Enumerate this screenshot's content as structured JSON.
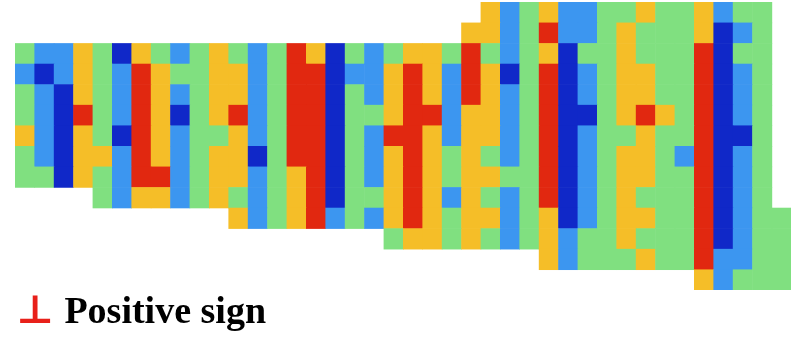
{
  "chart_data": {
    "type": "heatmap",
    "tick_labels": false,
    "grid": false,
    "zlim": [
      -1,
      1
    ],
    "cells": [
      [
        null,
        null,
        null,
        null,
        null,
        null,
        null,
        null,
        null,
        null,
        null,
        null,
        null,
        null,
        null,
        null,
        null,
        null,
        null,
        null,
        null,
        null,
        null,
        null,
        0.5,
        -0.5,
        0,
        0.5,
        -0.5,
        -0.5,
        0,
        0,
        0.5,
        0,
        0,
        0.5,
        -0.5,
        0,
        0,
        null
      ],
      [
        null,
        null,
        null,
        null,
        null,
        null,
        null,
        null,
        null,
        null,
        null,
        null,
        null,
        null,
        null,
        null,
        null,
        null,
        null,
        null,
        null,
        null,
        null,
        0.5,
        0.5,
        -0.5,
        0,
        1,
        -0.5,
        -0.5,
        0,
        0.5,
        0,
        0,
        0,
        0.5,
        -1,
        -0.5,
        0,
        null
      ],
      [
        0,
        -0.5,
        -0.5,
        0.5,
        0,
        -1,
        0.5,
        0,
        -0.5,
        0,
        0.5,
        0,
        -0.5,
        0,
        1,
        0.5,
        -1,
        0,
        -0.5,
        0,
        0.5,
        0.5,
        0,
        1,
        0,
        -0.5,
        0,
        0.5,
        -1,
        0,
        0,
        0.5,
        0,
        0,
        0,
        1,
        -1,
        0,
        0,
        null
      ],
      [
        -0.5,
        -1,
        -0.5,
        0.5,
        0,
        -0.5,
        1,
        0.5,
        0,
        0,
        0.5,
        0.5,
        -0.5,
        0,
        1,
        1,
        -1,
        -0.5,
        -0.5,
        0.5,
        1,
        0.5,
        -0.5,
        1,
        0.5,
        -1,
        0,
        1,
        -1,
        -0.5,
        0,
        0.5,
        0.5,
        0,
        0,
        1,
        -1,
        -0.5,
        0,
        null
      ],
      [
        0,
        -0.5,
        -1,
        0.5,
        0,
        -0.5,
        1,
        0.5,
        -0.5,
        0,
        0.5,
        0.5,
        -0.5,
        0,
        1,
        1,
        -1,
        0,
        -0.5,
        0.5,
        1,
        0.5,
        -0.5,
        1,
        0.5,
        -0.5,
        0,
        1,
        -1,
        -0.5,
        0,
        0.5,
        0.5,
        0,
        0,
        1,
        -1,
        -0.5,
        0,
        null
      ],
      [
        0,
        -0.5,
        -1,
        1,
        0,
        -0.5,
        1,
        0.5,
        -1,
        0,
        0.5,
        1,
        -0.5,
        0,
        1,
        1,
        -1,
        0,
        0,
        0.5,
        1,
        1,
        -0.5,
        0.5,
        0.5,
        -0.5,
        0,
        1,
        -1,
        -1,
        0,
        0.5,
        1,
        0.5,
        0,
        1,
        -1,
        -0.5,
        0,
        null
      ],
      [
        0.5,
        -0.5,
        -1,
        0.5,
        0,
        -1,
        1,
        0.5,
        -0.5,
        0,
        0,
        0.5,
        -0.5,
        0,
        1,
        1,
        -1,
        0,
        -0.5,
        1,
        1,
        0.5,
        -0.5,
        0.5,
        0.5,
        -0.5,
        0,
        1,
        -1,
        -0.5,
        0,
        0,
        0.5,
        0,
        0,
        1,
        -1,
        -1,
        0,
        null
      ],
      [
        0,
        -0.5,
        -1,
        0.5,
        0.5,
        -0.5,
        1,
        0.5,
        -0.5,
        0,
        0.5,
        0.5,
        -1,
        0,
        1,
        1,
        -1,
        0,
        -0.5,
        0.5,
        1,
        0.5,
        0,
        0.5,
        0,
        -0.5,
        0,
        1,
        -1,
        -0.5,
        0,
        0.5,
        0.5,
        0,
        -0.5,
        1,
        -1,
        -0.5,
        0,
        null
      ],
      [
        0,
        0,
        -1,
        0.5,
        0,
        -0.5,
        1,
        1,
        -0.5,
        0,
        0.5,
        0.5,
        -0.5,
        0,
        0.5,
        1,
        -1,
        0,
        -0.5,
        0.5,
        1,
        0.5,
        0,
        0.5,
        0.5,
        0,
        0,
        1,
        -1,
        -0.5,
        0,
        0.5,
        0.5,
        0,
        0,
        1,
        -1,
        -0.5,
        0,
        null
      ],
      [
        null,
        null,
        null,
        null,
        0,
        -0.5,
        0.5,
        0.5,
        -0.5,
        0,
        0.5,
        0,
        -0.5,
        0,
        0.5,
        1,
        -1,
        0,
        0,
        0.5,
        1,
        0.5,
        -0.5,
        0.5,
        0,
        -0.5,
        0,
        1,
        -1,
        -0.5,
        0,
        0.5,
        0,
        0,
        0,
        1,
        -1,
        -0.5,
        0,
        null
      ],
      [
        null,
        null,
        null,
        null,
        null,
        null,
        null,
        null,
        null,
        null,
        null,
        0.5,
        -0.5,
        0,
        0.5,
        1,
        -0.5,
        0,
        -0.5,
        0.5,
        1,
        0.5,
        0,
        0.5,
        0.5,
        -0.5,
        0,
        0.5,
        -1,
        -0.5,
        0,
        0.5,
        0.5,
        0,
        0,
        1,
        -1,
        -0.5,
        0,
        0
      ],
      [
        null,
        null,
        null,
        null,
        null,
        null,
        null,
        null,
        null,
        null,
        null,
        null,
        null,
        null,
        null,
        null,
        null,
        null,
        null,
        0,
        0.5,
        0.5,
        0,
        0.5,
        0,
        -0.5,
        0,
        0.5,
        -0.5,
        0,
        0,
        0.5,
        0,
        0,
        0,
        1,
        -1,
        -0.5,
        0,
        0
      ],
      [
        null,
        null,
        null,
        null,
        null,
        null,
        null,
        null,
        null,
        null,
        null,
        null,
        null,
        null,
        null,
        null,
        null,
        null,
        null,
        null,
        null,
        null,
        null,
        null,
        null,
        null,
        null,
        0.5,
        -0.5,
        0,
        0,
        0,
        0.5,
        0,
        0,
        1,
        -0.5,
        -0.5,
        0,
        0
      ],
      [
        null,
        null,
        null,
        null,
        null,
        null,
        null,
        null,
        null,
        null,
        null,
        null,
        null,
        null,
        null,
        null,
        null,
        null,
        null,
        null,
        null,
        null,
        null,
        null,
        null,
        null,
        null,
        null,
        null,
        null,
        null,
        null,
        null,
        null,
        null,
        0.5,
        -0.5,
        0,
        0,
        0
      ]
    ],
    "annotation": {
      "symbol": "⊥",
      "text": "Positive sign",
      "color": "#e8201a"
    }
  }
}
